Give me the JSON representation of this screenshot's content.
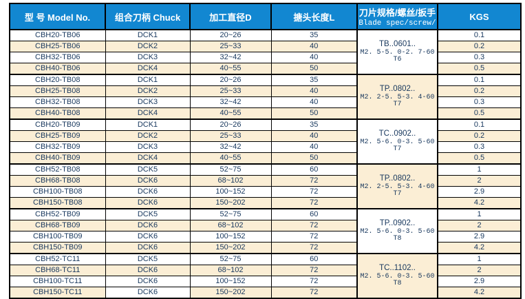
{
  "colors": {
    "header_bg": "#1287D1",
    "header_text": "#FFFFFF",
    "row_cream": "#FBEED5",
    "row_white": "#FFFFFF",
    "cell_text": "#17375D",
    "border": "#000000"
  },
  "table": {
    "header": {
      "model": "型 号 Model No.",
      "chuck": "组合刀柄 Chuck",
      "diameter": "加工直径D",
      "length": "搪头长度L",
      "blade_cn": "刀片规格/螺丝/扳手",
      "blade_en": "Blade spec/screw/",
      "kgs": "KGS"
    },
    "groups": [
      {
        "code": "TB..0601..",
        "screw": "M2. 5-5. 0-2. 7-60",
        "wrench": "T6",
        "bg": "white"
      },
      {
        "code": "TP..0802..",
        "screw": "M2. 2-5. 5-3. 4-60",
        "wrench": "T7",
        "bg": "cream"
      },
      {
        "code": "TC..0902..",
        "screw": "M2. 5-6. 0-3. 5-60",
        "wrench": "T7",
        "bg": "white"
      },
      {
        "code": "TP..0802..",
        "screw": "M2. 2-5. 5-3. 4-60",
        "wrench": "T7",
        "bg": "cream"
      },
      {
        "code": "TP..0902..",
        "screw": "M2. 5-6. 0-3. 5-60",
        "wrench": "T8",
        "bg": "white"
      },
      {
        "code": "TC..1102..",
        "screw": "M2. 5-6. 0-3. 5-60",
        "wrench": "T8",
        "bg": "cream"
      }
    ],
    "rows": [
      {
        "model": "CBH20-TB06",
        "chuck": "DCK1",
        "diameter": "20~26",
        "length": "35",
        "kgs": "0.1",
        "stripe": "white"
      },
      {
        "model": "CBH25-TB06",
        "chuck": "DCK2",
        "diameter": "25~33",
        "length": "40",
        "kgs": "0.2",
        "stripe": "cream"
      },
      {
        "model": "CBH32-TB06",
        "chuck": "DCK3",
        "diameter": "32~42",
        "length": "40",
        "kgs": "0.3",
        "stripe": "white"
      },
      {
        "model": "CBH40-TB06",
        "chuck": "DCK4",
        "diameter": "40~55",
        "length": "50",
        "kgs": "0.5",
        "stripe": "cream"
      },
      {
        "model": "CBH20-TB08",
        "chuck": "DCK1",
        "diameter": "20~26",
        "length": "35",
        "kgs": "0.1",
        "stripe": "white"
      },
      {
        "model": "CBH25-TB08",
        "chuck": "DCK2",
        "diameter": "25~33",
        "length": "40",
        "kgs": "0.2",
        "stripe": "cream"
      },
      {
        "model": "CBH32-TB08",
        "chuck": "DCK3",
        "diameter": "32~42",
        "length": "40",
        "kgs": "0.3",
        "stripe": "white"
      },
      {
        "model": "CBH40-TB08",
        "chuck": "DCK4",
        "diameter": "40~55",
        "length": "50",
        "kgs": "0.5",
        "stripe": "cream"
      },
      {
        "model": "CBH20-TB09",
        "chuck": "DCK1",
        "diameter": "20~26",
        "length": "35",
        "kgs": "0.1",
        "stripe": "white"
      },
      {
        "model": "CBH25-TB09",
        "chuck": "DCK2",
        "diameter": "25~33",
        "length": "40",
        "kgs": "0.2",
        "stripe": "cream"
      },
      {
        "model": "CBH32-TB09",
        "chuck": "DCK3",
        "diameter": "32~42",
        "length": "40",
        "kgs": "0.3",
        "stripe": "white"
      },
      {
        "model": "CBH40-TB09",
        "chuck": "DCK4",
        "diameter": "40~55",
        "length": "50",
        "kgs": "0.5",
        "stripe": "cream"
      },
      {
        "model": "CBH52-TB08",
        "chuck": "DCK5",
        "diameter": "52~75",
        "length": "60",
        "kgs": "1",
        "stripe": "white"
      },
      {
        "model": "CBH68-TB08",
        "chuck": "DCK6",
        "diameter": "68~102",
        "length": "72",
        "kgs": "2",
        "stripe": "cream"
      },
      {
        "model": "CBH100-TB08",
        "chuck": "DCK6",
        "diameter": "100~152",
        "length": "72",
        "kgs": "2.9",
        "stripe": "white"
      },
      {
        "model": "CBH150-TB08",
        "chuck": "DCK6",
        "diameter": "150~202",
        "length": "72",
        "kgs": "4.2",
        "stripe": "cream"
      },
      {
        "model": "CBH52-TB09",
        "chuck": "DCK5",
        "diameter": "52~75",
        "length": "60",
        "kgs": "1",
        "stripe": "white"
      },
      {
        "model": "CBH68-TB09",
        "chuck": "DCK6",
        "diameter": "68~102",
        "length": "72",
        "kgs": "2",
        "stripe": "cream"
      },
      {
        "model": "CBH100-TB09",
        "chuck": "DCK6",
        "diameter": "100~152",
        "length": "72",
        "kgs": "2.9",
        "stripe": "white"
      },
      {
        "model": "CBH150-TB09",
        "chuck": "DCK6",
        "diameter": "150~202",
        "length": "72",
        "kgs": "4.2",
        "stripe": "cream"
      },
      {
        "model": "CBH52-TC11",
        "chuck": "DCK5",
        "diameter": "52~75",
        "length": "60",
        "kgs": "1",
        "stripe": "white"
      },
      {
        "model": "CBH68-TC11",
        "chuck": "DCK6",
        "diameter": "68~102",
        "length": "72",
        "kgs": "2",
        "stripe": "cream"
      },
      {
        "model": "CBH100-TC11",
        "chuck": "DCK6",
        "diameter": "100~152",
        "length": "72",
        "kgs": "2.9",
        "stripe": "white"
      },
      {
        "model": "CBH150-TC11",
        "chuck": "DCK6",
        "diameter": "150~202",
        "length": "72",
        "kgs": "4.2",
        "stripe": "cream",
        "chuck_bg": "white"
      }
    ]
  }
}
